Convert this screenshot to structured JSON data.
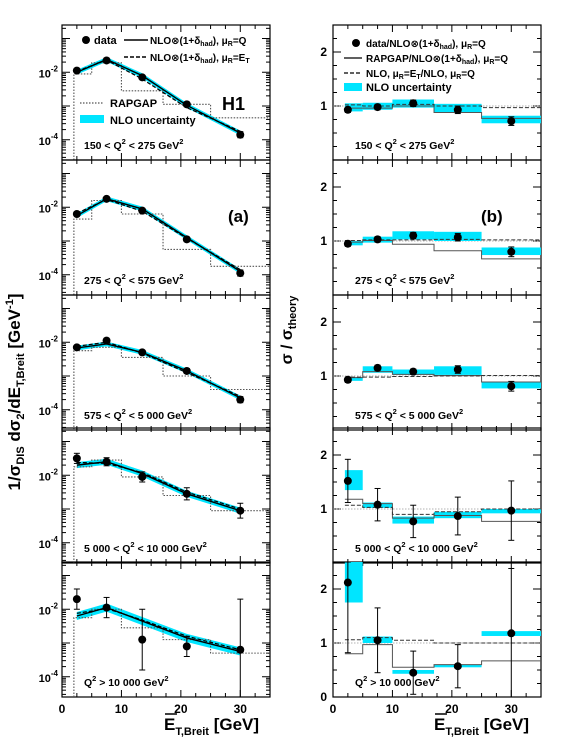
{
  "figure": {
    "experiment": "H1",
    "left_tag": "(a)",
    "right_tag": "(b)",
    "left_ylabel": "1/σ",
    "left_ylabel_sub": "DIS",
    "left_ylabel_mid": " dσ",
    "left_ylabel_sub2": "2",
    "left_ylabel_mid2": "/dE",
    "left_ylabel_sub3": "T,Breit",
    "left_ylabel_unit": " [GeV",
    "left_ylabel_unit_sup": "-1",
    "left_ylabel_close": "]",
    "right_ylabel": "σ / σ",
    "right_ylabel_sub": "theory",
    "xlabel": "E",
    "xlabel_sub": "T,Breit",
    "xlabel_unit": " [GeV]",
    "x_ticks": [
      "0",
      "10",
      "20",
      "30"
    ],
    "left_ytick_base": "10",
    "left_ytick_exps": [
      "-2",
      "-4"
    ],
    "right_yticks": [
      "0",
      "1",
      "2"
    ],
    "legend_left": {
      "data": "data",
      "nlo_q_main": "NLO⊗(1+δ",
      "nlo_q_sub": "had",
      "nlo_q_tail": "), μ",
      "nlo_q_sub2": "R",
      "nlo_q_end": "=Q",
      "nlo_et_main": "NLO⊗(1+δ",
      "nlo_et_sub": "had",
      "nlo_et_tail": "), μ",
      "nlo_et_sub2": "R",
      "nlo_et_end": "=E",
      "nlo_et_sub3": "T",
      "rapgap": "RAPGAP",
      "nlo_unc": "NLO uncertainty"
    },
    "legend_right": {
      "l1_main": "data/NLO⊗(1+δ",
      "l1_sub": "had",
      "l1_tail": "), μ",
      "l1_sub2": "R",
      "l1_end": "=Q",
      "l2_main": "RAPGAP/NLO⊗(1+δ",
      "l2_sub": "had",
      "l2_tail": "), μ",
      "l2_sub2": "R",
      "l2_end": "=Q",
      "l3_main": "NLO, μ",
      "l3_sub": "R",
      "l3_mid": "=E",
      "l3_sub2": "T",
      "l3_tail": "/NLO, μ",
      "l3_sub3": "R",
      "l3_end": "=Q",
      "l4": "NLO uncertainty"
    },
    "q2_labels": [
      {
        "pre": "150 < Q",
        "sup": "2",
        "post": " < 275 GeV",
        "sup2": "2"
      },
      {
        "pre": "275 < Q",
        "sup": "2",
        "post": " < 575 GeV",
        "sup2": "2"
      },
      {
        "pre": "575 < Q",
        "sup": "2",
        "post": " < 5 000 GeV",
        "sup2": "2"
      },
      {
        "pre": "5 000 < Q",
        "sup": "2",
        "post": " < 10 000 GeV",
        "sup2": "2"
      },
      {
        "pre": "Q",
        "sup": "2",
        "post": " > 10 000 GeV",
        "sup2": "2"
      }
    ],
    "colors": {
      "band": "#00e5ff",
      "frame": "#000000",
      "dotted": "#555555"
    }
  },
  "chart_data": [
    {
      "type": "scatter",
      "panel": "left",
      "log_y": true,
      "xlim": [
        0,
        35
      ],
      "x_bin_edges": [
        2,
        5,
        10,
        17,
        25,
        35
      ],
      "rows": [
        {
          "ylim": [
            -4.6,
            -0.6
          ],
          "data_x": [
            2.5,
            7.5,
            13.5,
            21,
            30
          ],
          "data_y": [
            -1.95,
            -1.65,
            -2.15,
            -2.95,
            -3.85
          ],
          "data_err": [
            0.05,
            0.05,
            0.05,
            0.07,
            0.09
          ],
          "nlo_q": [
            -2.0,
            -1.62,
            -2.1,
            -2.98,
            -3.8
          ],
          "nlo_et": [
            -1.97,
            -1.64,
            -2.2,
            -3.05,
            -3.75
          ],
          "band_w": 0.07,
          "rapgap": [
            -2.05,
            -1.72,
            -2.55,
            -2.95,
            -3.35,
            -3.9
          ]
        },
        {
          "ylim": [
            -4.6,
            -0.6
          ],
          "data_x": [
            2.5,
            7.5,
            13.5,
            21,
            30
          ],
          "data_y": [
            -2.2,
            -1.75,
            -2.1,
            -2.95,
            -3.95
          ],
          "data_err": [
            0.05,
            0.05,
            0.05,
            0.07,
            0.09
          ],
          "nlo_q": [
            -2.25,
            -1.75,
            -2.05,
            -2.9,
            -3.9
          ],
          "nlo_et": [
            -2.18,
            -1.77,
            -2.12,
            -2.92,
            -3.85
          ],
          "band_w": 0.07,
          "rapgap": [
            -2.35,
            -1.8,
            -2.2,
            -3.25,
            -3.75,
            -4.4
          ]
        },
        {
          "ylim": [
            -4.6,
            -0.6
          ],
          "data_x": [
            2.5,
            7.5,
            13.5,
            21,
            30
          ],
          "data_y": [
            -2.15,
            -1.95,
            -2.3,
            -2.85,
            -3.7
          ],
          "data_err": [
            0.05,
            0.05,
            0.05,
            0.07,
            0.09
          ],
          "nlo_q": [
            -2.17,
            -2.05,
            -2.3,
            -2.85,
            -3.65
          ],
          "nlo_et": [
            -2.12,
            -2.0,
            -2.32,
            -2.9,
            -3.6
          ],
          "band_w": 0.07,
          "rapgap": [
            -2.25,
            -2.15,
            -2.45,
            -3.0,
            -3.4,
            -3.9
          ]
        },
        {
          "ylim": [
            -4.6,
            -0.6
          ],
          "data_x": [
            2.5,
            7.5,
            13.5,
            21,
            30
          ],
          "data_y": [
            -1.5,
            -1.6,
            -2.05,
            -2.55,
            -3.05
          ],
          "data_err": [
            0.15,
            0.12,
            0.15,
            0.18,
            0.22
          ],
          "nlo_q": [
            -1.7,
            -1.6,
            -1.95,
            -2.55,
            -3.05
          ],
          "nlo_et": [
            -1.62,
            -1.65,
            -1.92,
            -2.5,
            -3.0
          ],
          "band_w": 0.09,
          "rapgap": [
            -1.75,
            -1.55,
            -2.05,
            -2.6,
            -3.05,
            -3.35
          ]
        },
        {
          "ylim": [
            -4.6,
            -0.6
          ],
          "data_x": [
            2.5,
            7.5,
            13.5,
            21,
            30
          ],
          "data_y": [
            -1.7,
            -1.95,
            -2.9,
            -3.1,
            -3.2
          ],
          "data_err": [
            0.3,
            0.3,
            0.9,
            0.3,
            1.5
          ],
          "nlo_q": [
            -2.2,
            -1.95,
            -2.35,
            -2.85,
            -3.25
          ],
          "nlo_et": [
            -2.12,
            -1.98,
            -2.32,
            -2.8,
            -3.2
          ],
          "band_w": 0.12,
          "rapgap": [
            -2.25,
            -2.0,
            -2.55,
            -2.9,
            -3.3,
            -3.6
          ]
        }
      ]
    },
    {
      "type": "scatter",
      "panel": "right",
      "xlim": [
        0,
        35
      ],
      "ylim": [
        0,
        2.5
      ],
      "x_bin_edges": [
        2,
        5,
        10,
        17,
        25,
        35
      ],
      "rows": [
        {
          "data_x": [
            2.5,
            7.5,
            13.5,
            21,
            30
          ],
          "data_y": [
            0.93,
            0.98,
            1.05,
            0.93,
            0.72
          ],
          "data_err": [
            0.05,
            0.05,
            0.06,
            0.07,
            0.08
          ],
          "band": [
            [
              0.9,
              1.05
            ],
            [
              0.93,
              1.06
            ],
            [
              0.97,
              1.12
            ],
            [
              0.88,
              1.04
            ],
            [
              0.68,
              0.82
            ]
          ],
          "rapgap": [
            0.96,
            0.96,
            1.0,
            0.88,
            0.77
          ],
          "nlo_et": [
            1.02,
            1.0,
            1.03,
            1.0,
            0.97
          ]
        },
        {
          "data_x": [
            2.5,
            7.5,
            13.5,
            21,
            30
          ],
          "data_y": [
            0.95,
            1.03,
            1.1,
            1.07,
            0.8
          ],
          "data_err": [
            0.05,
            0.05,
            0.06,
            0.07,
            0.09
          ],
          "band": [
            [
              0.92,
              1.0
            ],
            [
              0.97,
              1.08
            ],
            [
              1.03,
              1.18
            ],
            [
              1.0,
              1.17
            ],
            [
              0.74,
              0.88
            ]
          ],
          "rapgap": [
            0.98,
            1.01,
            0.94,
            0.82,
            0.67
          ],
          "nlo_et": [
            1.01,
            1.02,
            1.02,
            1.03,
            1.02
          ]
        },
        {
          "data_x": [
            2.5,
            7.5,
            13.5,
            21,
            30
          ],
          "data_y": [
            0.93,
            1.15,
            1.08,
            1.12,
            0.81
          ],
          "data_err": [
            0.05,
            0.05,
            0.05,
            0.07,
            0.09
          ],
          "band": [
            [
              0.91,
              0.98
            ],
            [
              1.06,
              1.18
            ],
            [
              1.02,
              1.12
            ],
            [
              1.02,
              1.18
            ],
            [
              0.77,
              0.88
            ]
          ],
          "rapgap": [
            0.97,
            1.08,
            1.03,
            1.01,
            0.89
          ],
          "nlo_et": [
            0.98,
            0.98,
            0.99,
            1.0,
            1.01
          ]
        },
        {
          "data_x": [
            2.5,
            7.5,
            13.5,
            21,
            30
          ],
          "data_y": [
            1.52,
            1.08,
            0.77,
            0.87,
            0.97
          ],
          "data_err": [
            0.4,
            0.3,
            0.3,
            0.35,
            0.55
          ],
          "band": [
            [
              1.35,
              1.72
            ],
            [
              1.02,
              1.12
            ],
            [
              0.73,
              0.86
            ],
            [
              0.83,
              0.95
            ],
            [
              0.92,
              1.0
            ]
          ],
          "rapgap": [
            1.18,
            1.1,
            0.83,
            0.88,
            0.77
          ],
          "nlo_et": [
            1.07,
            1.03,
            0.9,
            0.95,
            1.0
          ]
        },
        {
          "data_x": [
            2.5,
            7.5,
            13.5,
            21,
            30
          ],
          "data_y": [
            2.12,
            1.05,
            0.45,
            0.57,
            1.18
          ],
          "data_err": [
            1.3,
            0.6,
            0.4,
            0.4,
            1.2
          ],
          "band": [
            [
              1.75,
              2.5
            ],
            [
              1.0,
              1.12
            ],
            [
              0.43,
              0.5
            ],
            [
              0.55,
              0.6
            ],
            [
              1.13,
              1.22
            ]
          ],
          "rapgap": [
            0.8,
            0.97,
            0.55,
            0.6,
            0.67
          ],
          "nlo_et": [
            1.06,
            1.1,
            1.05,
            1.0,
            1.0
          ]
        }
      ]
    }
  ]
}
